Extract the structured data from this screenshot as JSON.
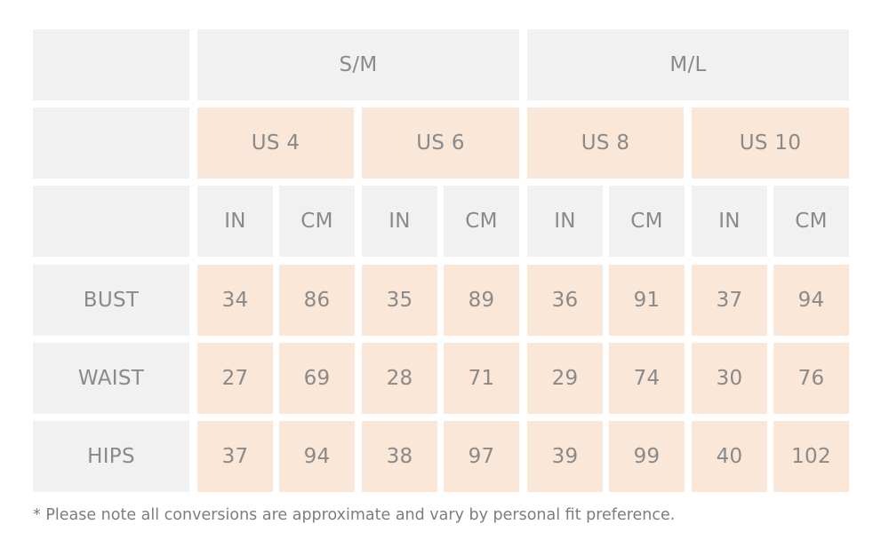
{
  "size_groups": [
    "S/M",
    "M/L"
  ],
  "us_sizes": [
    "US 4",
    "US 6",
    "US 8",
    "US 10"
  ],
  "units": [
    "IN",
    "CM",
    "IN",
    "CM",
    "IN",
    "CM",
    "IN",
    "CM"
  ],
  "rows": [
    {
      "label": "BUST",
      "values": [
        "34",
        "86",
        "35",
        "89",
        "36",
        "91",
        "37",
        "94"
      ]
    },
    {
      "label": "WAIST",
      "values": [
        "27",
        "69",
        "28",
        "71",
        "29",
        "74",
        "30",
        "76"
      ]
    },
    {
      "label": "HIPS",
      "values": [
        "37",
        "94",
        "38",
        "97",
        "39",
        "99",
        "40",
        "102"
      ]
    }
  ],
  "note": "* Please note all conversions are approximate and vary by personal fit preference."
}
